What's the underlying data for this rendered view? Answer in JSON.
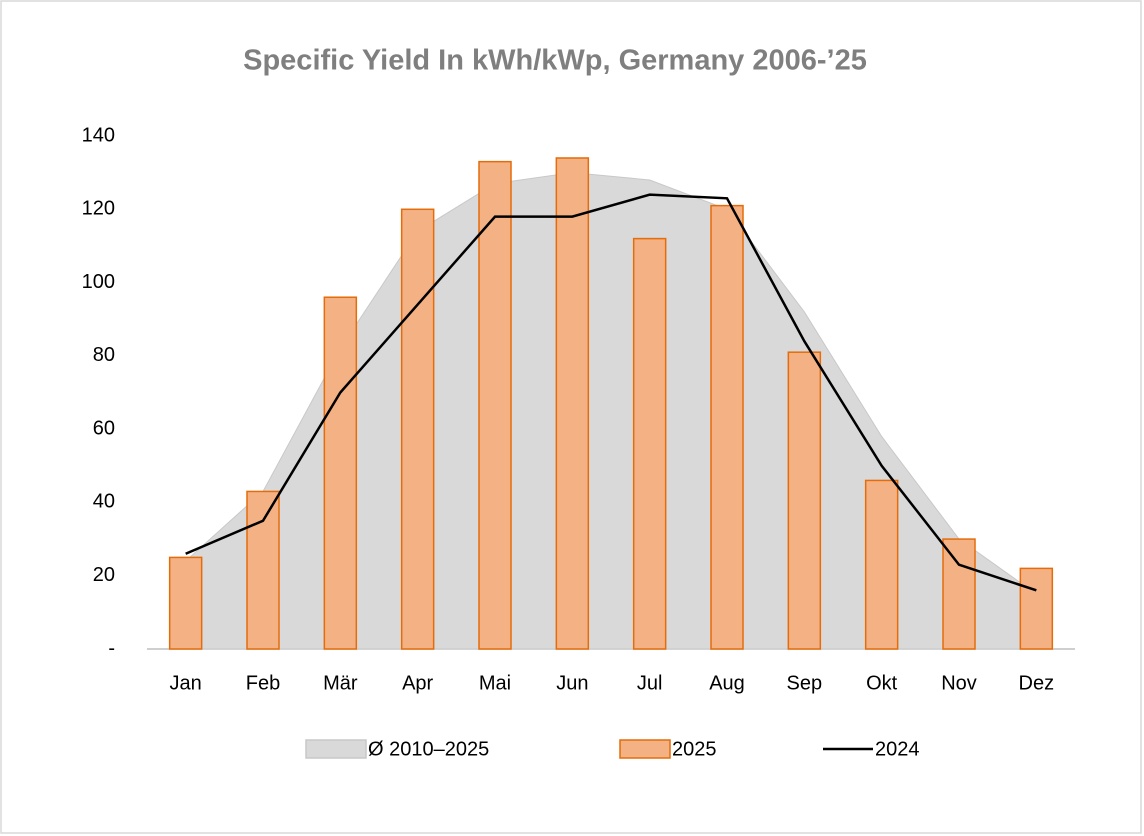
{
  "chart_data": {
    "type": "combo",
    "title": "Specific Yield In kWh/kWp, Germany 2006-’25",
    "categories": [
      "Jan",
      "Feb",
      "Mär",
      "Apr",
      "Mai",
      "Jun",
      "Jul",
      "Aug",
      "Sep",
      "Okt",
      "Nov",
      "Dez"
    ],
    "series": [
      {
        "name": "Ø 2010–2025",
        "type": "area",
        "color": "#d9d9d9",
        "values": [
          24,
          43,
          82,
          114,
          127,
          130,
          128,
          120,
          92,
          58,
          30,
          15
        ]
      },
      {
        "name": "2025",
        "type": "bar",
        "color": "#f4b183",
        "edge": "#e46c0a",
        "values": [
          25,
          43,
          96,
          120,
          133,
          134,
          112,
          121,
          81,
          46,
          30,
          22
        ]
      },
      {
        "name": "2024",
        "type": "line",
        "color": "#000000",
        "values": [
          26,
          35,
          70,
          94,
          118,
          118,
          124,
          123,
          84,
          50,
          23,
          16
        ]
      }
    ],
    "ylim": [
      0,
      140
    ],
    "yticks": [
      {
        "value": 0,
        "label": "-"
      },
      20,
      40,
      60,
      80,
      100,
      120,
      140
    ],
    "legend": "bottom"
  }
}
